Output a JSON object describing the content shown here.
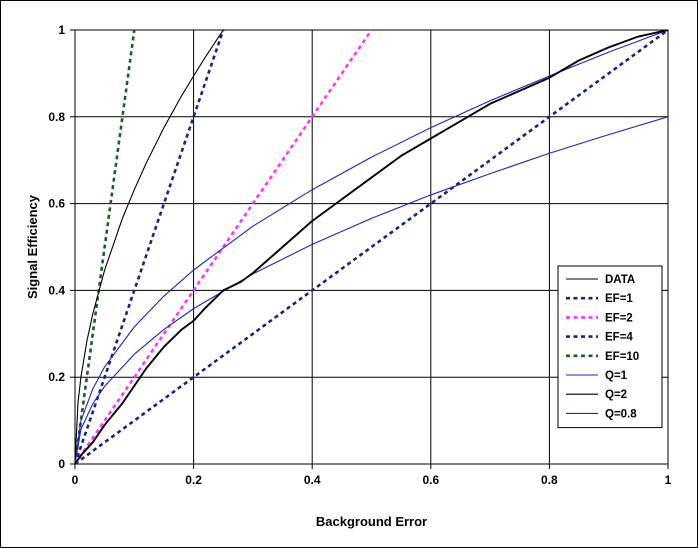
{
  "chart_data": {
    "type": "line",
    "title": "",
    "xlabel": "Background Error",
    "ylabel": "Signal Efficiency",
    "xlim": [
      0,
      1
    ],
    "ylim": [
      0,
      1
    ],
    "x_ticks": [
      "0",
      "0.2",
      "0.4",
      "0.6",
      "0.8",
      "1"
    ],
    "y_ticks": [
      "0",
      "0.2",
      "0.4",
      "0.6",
      "0.8",
      "1"
    ],
    "grid": true,
    "legend_position": "right",
    "series": [
      {
        "name": "DATA",
        "color": "#000000",
        "style": "solid",
        "x": [
          0,
          0.01,
          0.03,
          0.05,
          0.08,
          0.1,
          0.12,
          0.15,
          0.18,
          0.2,
          0.22,
          0.25,
          0.28,
          0.3,
          0.35,
          0.4,
          0.45,
          0.5,
          0.55,
          0.6,
          0.65,
          0.7,
          0.75,
          0.8,
          0.85,
          0.9,
          0.95,
          1.0
        ],
        "y": [
          0,
          0.02,
          0.05,
          0.09,
          0.14,
          0.18,
          0.22,
          0.27,
          0.31,
          0.33,
          0.36,
          0.4,
          0.42,
          0.44,
          0.5,
          0.56,
          0.61,
          0.66,
          0.71,
          0.75,
          0.79,
          0.83,
          0.86,
          0.89,
          0.93,
          0.96,
          0.985,
          1.0
        ]
      },
      {
        "name": "EF=1",
        "color": "#1a237e",
        "style": "dashed",
        "x": [
          0,
          1
        ],
        "y": [
          0,
          1
        ]
      },
      {
        "name": "EF=2",
        "color": "#ff33ff",
        "style": "dashed",
        "x": [
          0,
          0.5
        ],
        "y": [
          0,
          1
        ]
      },
      {
        "name": "EF=4",
        "color": "#1a237e",
        "style": "dashed",
        "x": [
          0,
          0.25
        ],
        "y": [
          0,
          1
        ]
      },
      {
        "name": "EF=10",
        "color": "#1b5e20",
        "style": "dashed",
        "x": [
          0,
          0.1
        ],
        "y": [
          0,
          1
        ]
      },
      {
        "name": "Q=1",
        "color": "#2222bb",
        "style": "solid",
        "x": [
          0,
          0.01,
          0.03,
          0.05,
          0.1,
          0.15,
          0.2,
          0.3,
          0.4,
          0.5,
          0.6,
          0.7,
          0.8,
          0.9,
          1.0
        ],
        "y": [
          0,
          0.1,
          0.173,
          0.224,
          0.316,
          0.387,
          0.447,
          0.548,
          0.632,
          0.707,
          0.775,
          0.837,
          0.894,
          0.949,
          1.0
        ]
      },
      {
        "name": "Q=2",
        "color": "#000000",
        "style": "solid",
        "x": [
          0,
          0.005,
          0.01,
          0.02,
          0.03,
          0.05,
          0.08,
          0.1,
          0.12,
          0.15,
          0.18,
          0.2,
          0.22,
          0.25
        ],
        "y": [
          0,
          0.141,
          0.2,
          0.283,
          0.346,
          0.447,
          0.566,
          0.632,
          0.693,
          0.775,
          0.849,
          0.894,
          0.938,
          1.0
        ]
      },
      {
        "name": "Q=0.8",
        "color": "#2222bb",
        "style": "solid",
        "x": [
          0,
          0.01,
          0.03,
          0.05,
          0.1,
          0.15,
          0.2,
          0.3,
          0.4,
          0.5,
          0.6,
          0.7,
          0.8,
          0.9,
          1.0
        ],
        "y": [
          0,
          0.08,
          0.139,
          0.179,
          0.253,
          0.31,
          0.358,
          0.438,
          0.506,
          0.566,
          0.62,
          0.669,
          0.716,
          0.759,
          0.8
        ]
      }
    ]
  }
}
